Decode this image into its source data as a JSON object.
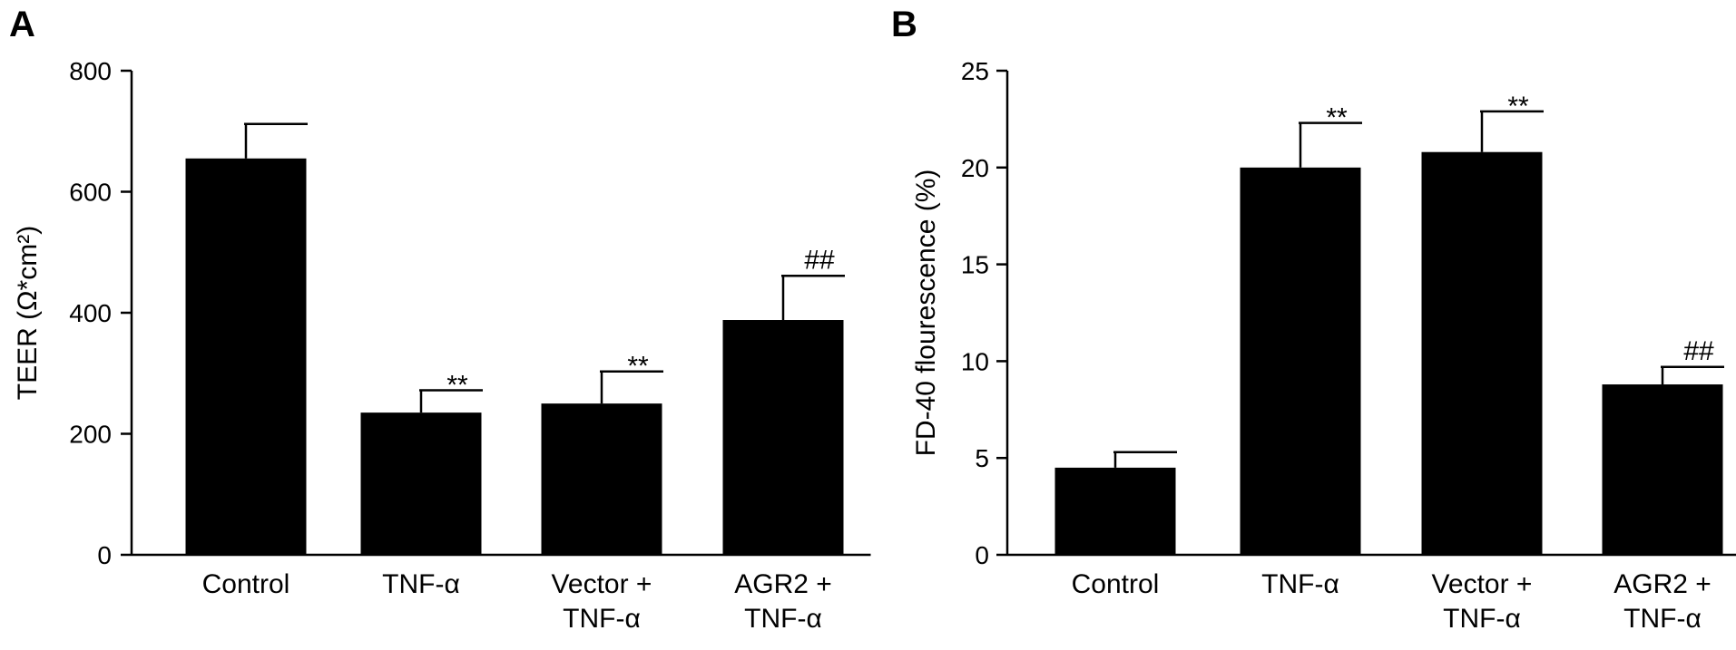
{
  "chart_data": [
    {
      "type": "bar",
      "panel_label": "A",
      "title": "",
      "xlabel": "",
      "ylabel": "TEER (Ω*cm²)",
      "ylim": [
        0,
        800
      ],
      "yticks": [
        0,
        200,
        400,
        600,
        800
      ],
      "categories": [
        "Control",
        "TNF-α",
        "Vector +\nTNF-α",
        "AGR2 +\nTNF-α"
      ],
      "values": [
        655,
        235,
        250,
        388
      ],
      "errors": [
        57,
        37,
        53,
        73
      ],
      "annotations": [
        "",
        "**",
        "**",
        "##"
      ],
      "bar_color": "#000000"
    },
    {
      "type": "bar",
      "panel_label": "B",
      "title": "",
      "xlabel": "",
      "ylabel": "FD-40 flourescence (%)",
      "ylim": [
        0,
        25
      ],
      "yticks": [
        0,
        5,
        10,
        15,
        20,
        25
      ],
      "categories": [
        "Control",
        "TNF-α",
        "Vector +\nTNF-α",
        "AGR2 +\nTNF-α"
      ],
      "values": [
        4.5,
        20.0,
        20.8,
        8.8
      ],
      "errors": [
        0.8,
        2.3,
        2.1,
        0.9
      ],
      "annotations": [
        "",
        "**",
        "**",
        "##"
      ],
      "bar_color": "#000000"
    }
  ]
}
